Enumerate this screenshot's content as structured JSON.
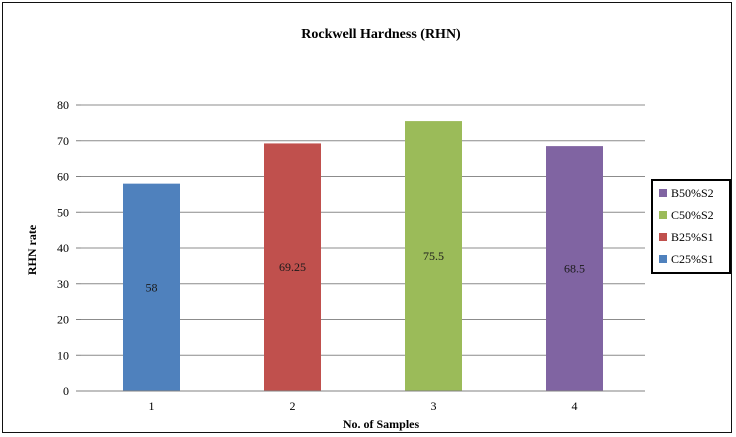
{
  "chart_data": {
    "type": "bar",
    "title": "Rockwell Hardness (RHN)",
    "xlabel": "No. of Samples",
    "ylabel": "RHN rate",
    "categories": [
      "1",
      "2",
      "3",
      "4"
    ],
    "values": [
      58,
      69.25,
      75.5,
      68.5
    ],
    "data_labels": [
      "58",
      "69.25",
      "75.5",
      "68.5"
    ],
    "bar_colors": [
      "#4f81bd",
      "#c0504d",
      "#9bbb59",
      "#8064a2"
    ],
    "bar_series": [
      "C25%S1",
      "B25%S1",
      "C50%S2",
      "B50%S2"
    ],
    "ylim": [
      0,
      80
    ],
    "yticks": [
      0,
      10,
      20,
      30,
      40,
      50,
      60,
      70,
      80
    ],
    "grid": true,
    "legend_position": "right",
    "legend": [
      {
        "name": "B50%S2",
        "color": "#8064a2"
      },
      {
        "name": "C50%S2",
        "color": "#9bbb59"
      },
      {
        "name": "B25%S1",
        "color": "#c0504d"
      },
      {
        "name": "C25%S1",
        "color": "#4f81bd"
      }
    ]
  }
}
